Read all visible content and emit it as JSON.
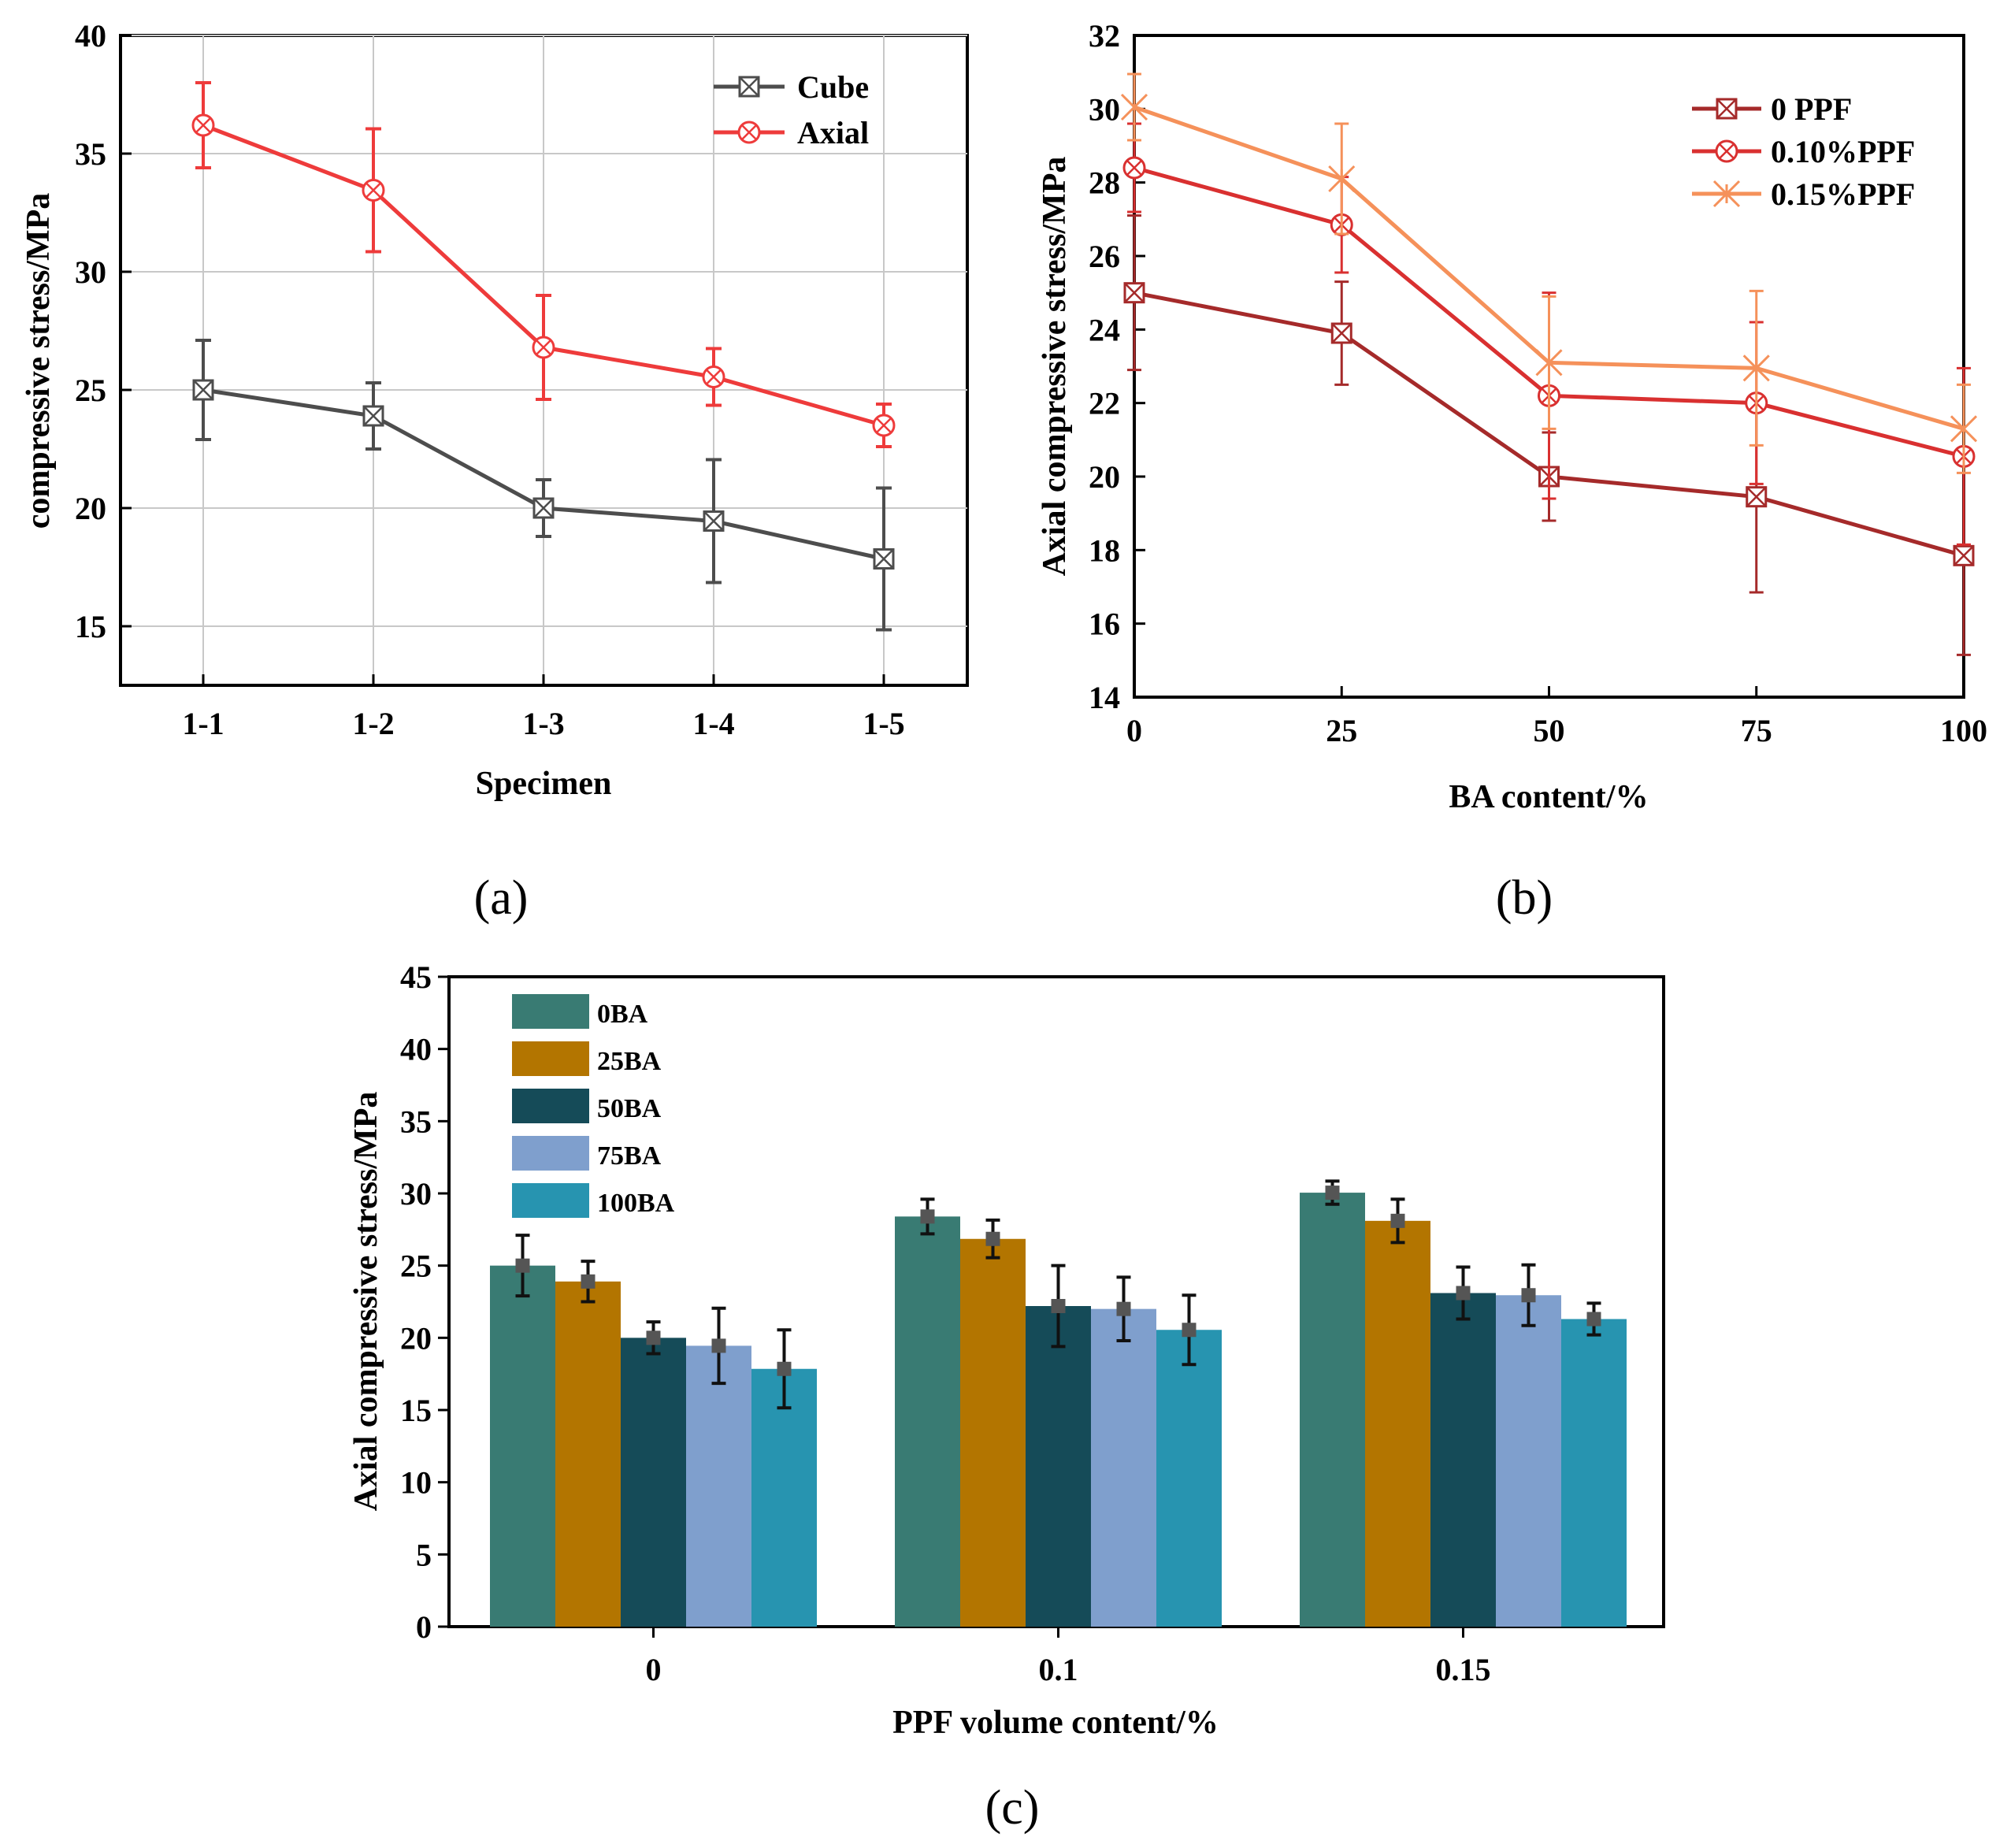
{
  "chart_data": [
    {
      "id": "a",
      "type": "line",
      "panel_label": "(a)",
      "xlabel": "Specimen",
      "ylabel": "compressive stress/MPa",
      "categories": [
        "1-1",
        "1-2",
        "1-3",
        "1-4",
        "1-5"
      ],
      "ylim": [
        12.5,
        40
      ],
      "yticks": [
        15,
        20,
        25,
        30,
        35,
        40
      ],
      "grid": true,
      "legend_position": "top-right",
      "series": [
        {
          "name": "Cube",
          "color": "#4d4d4d",
          "marker": "square-x",
          "values": [
            25.0,
            23.9,
            20.0,
            19.45,
            17.85
          ],
          "errors": [
            2.1,
            1.4,
            1.2,
            2.6,
            3.0
          ]
        },
        {
          "name": "Axial",
          "color": "#ee3b3b",
          "marker": "circle-x",
          "values": [
            36.2,
            33.45,
            26.8,
            25.55,
            23.5
          ],
          "errors": [
            1.8,
            2.6,
            2.2,
            1.2,
            0.9
          ]
        }
      ]
    },
    {
      "id": "b",
      "type": "line",
      "panel_label": "(b)",
      "xlabel": "BA content/%",
      "ylabel": "Axial compressive stress/MPa",
      "x": [
        0,
        25,
        50,
        75,
        100
      ],
      "xlim": [
        0,
        100
      ],
      "ylim": [
        14,
        32
      ],
      "yticks": [
        14,
        16,
        18,
        20,
        22,
        24,
        26,
        28,
        30,
        32
      ],
      "grid": false,
      "legend_position": "top-right",
      "series": [
        {
          "name": "0 PPF",
          "color": "#a52a2a",
          "marker": "square-x",
          "values": [
            25.0,
            23.9,
            20.0,
            19.45,
            17.85
          ],
          "errors": [
            2.1,
            1.4,
            1.2,
            2.6,
            2.7
          ]
        },
        {
          "name": "0.10%PPF",
          "color": "#d93030",
          "marker": "circle-x",
          "values": [
            28.4,
            26.85,
            22.2,
            22.0,
            20.55
          ],
          "errors": [
            1.2,
            1.3,
            2.8,
            2.2,
            2.4
          ]
        },
        {
          "name": "0.15%PPF",
          "color": "#f5915a",
          "marker": "star",
          "values": [
            30.05,
            28.1,
            23.1,
            22.95,
            21.3
          ],
          "errors": [
            0.9,
            1.5,
            1.8,
            2.1,
            1.2
          ]
        }
      ]
    },
    {
      "id": "c",
      "type": "bar",
      "panel_label": "(c)",
      "xlabel": "PPF volume content/%",
      "ylabel": "Axial compressive stress/MPa",
      "categories": [
        "0",
        "0.1",
        "0.15"
      ],
      "ylim": [
        0,
        45
      ],
      "yticks": [
        0,
        5,
        10,
        15,
        20,
        25,
        30,
        35,
        40,
        45
      ],
      "legend_position": "top-left",
      "series": [
        {
          "name": "0BA",
          "color": "#397b73",
          "values": [
            25.0,
            28.4,
            30.05
          ],
          "errors": [
            2.1,
            1.2,
            0.8
          ]
        },
        {
          "name": "25BA",
          "color": "#b37500",
          "values": [
            23.9,
            26.85,
            28.1
          ],
          "errors": [
            1.4,
            1.3,
            1.5
          ]
        },
        {
          "name": "50BA",
          "color": "#154b58",
          "values": [
            20.0,
            22.2,
            23.1
          ],
          "errors": [
            1.1,
            2.8,
            1.8
          ]
        },
        {
          "name": "75BA",
          "color": "#7f9fcd",
          "values": [
            19.45,
            22.0,
            22.95
          ],
          "errors": [
            2.6,
            2.2,
            2.1
          ]
        },
        {
          "name": "100BA",
          "color": "#2794b0",
          "values": [
            17.85,
            20.55,
            21.3
          ],
          "errors": [
            2.7,
            2.4,
            1.1
          ]
        }
      ]
    }
  ]
}
